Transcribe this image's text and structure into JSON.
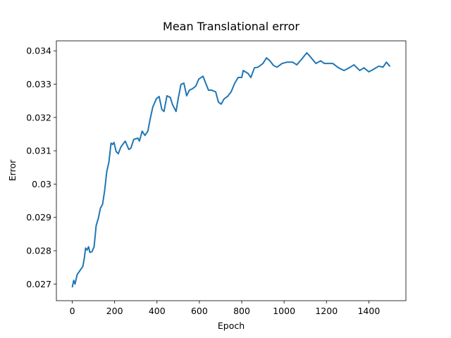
{
  "chart_data": {
    "type": "line",
    "title": "Mean Translational error",
    "xlabel": "Epoch",
    "ylabel": "Error",
    "x": [
      0,
      7,
      13,
      23,
      40,
      50,
      57,
      63,
      70,
      77,
      83,
      93,
      103,
      113,
      123,
      133,
      143,
      153,
      163,
      173,
      183,
      190,
      197,
      207,
      217,
      230,
      250,
      267,
      277,
      290,
      310,
      317,
      330,
      343,
      357,
      367,
      380,
      397,
      410,
      423,
      433,
      447,
      463,
      473,
      490,
      500,
      513,
      527,
      540,
      553,
      567,
      583,
      597,
      617,
      630,
      643,
      657,
      677,
      690,
      703,
      717,
      733,
      750,
      767,
      783,
      800,
      807,
      830,
      843,
      860,
      877,
      900,
      917,
      933,
      950,
      967,
      990,
      1013,
      1040,
      1060,
      1083,
      1107,
      1123,
      1150,
      1173,
      1190,
      1207,
      1230,
      1257,
      1283,
      1307,
      1330,
      1357,
      1377,
      1400,
      1423,
      1447,
      1467,
      1483,
      1500
    ],
    "series": [
      {
        "name": "Mean Translational error",
        "color": "#1f77b4",
        "values": [
          0.0269,
          0.02711,
          0.027,
          0.02728,
          0.02744,
          0.02753,
          0.02778,
          0.02808,
          0.02802,
          0.02812,
          0.02795,
          0.02797,
          0.02812,
          0.02876,
          0.02897,
          0.02928,
          0.02939,
          0.02981,
          0.03038,
          0.03066,
          0.03123,
          0.03119,
          0.03125,
          0.03098,
          0.03091,
          0.03112,
          0.03129,
          0.03104,
          0.03108,
          0.03134,
          0.03138,
          0.03129,
          0.03159,
          0.03146,
          0.03159,
          0.03193,
          0.03231,
          0.03256,
          0.03263,
          0.03224,
          0.03218,
          0.03265,
          0.0326,
          0.03239,
          0.03218,
          0.03256,
          0.03299,
          0.03303,
          0.03265,
          0.03282,
          0.03286,
          0.03294,
          0.03315,
          0.03324,
          0.03303,
          0.03282,
          0.03282,
          0.03277,
          0.03246,
          0.0324,
          0.03256,
          0.03263,
          0.03277,
          0.03303,
          0.0332,
          0.0332,
          0.03341,
          0.03332,
          0.0332,
          0.03349,
          0.03351,
          0.03362,
          0.03379,
          0.0337,
          0.03356,
          0.03351,
          0.03362,
          0.03366,
          0.03366,
          0.03358,
          0.03375,
          0.03394,
          0.03383,
          0.03362,
          0.0337,
          0.03362,
          0.03362,
          0.03362,
          0.03349,
          0.03341,
          0.03349,
          0.03358,
          0.03341,
          0.03349,
          0.03337,
          0.03345,
          0.03354,
          0.03351,
          0.03366,
          0.03353
        ]
      }
    ],
    "xlim": [
      -75,
      1575
    ],
    "ylim": [
      0.0265,
      0.0343
    ],
    "xticks": [
      0,
      200,
      400,
      600,
      800,
      1000,
      1200,
      1400
    ],
    "yticks": [
      0.027,
      0.028,
      0.029,
      0.03,
      0.031,
      0.032,
      0.033,
      0.034
    ]
  }
}
